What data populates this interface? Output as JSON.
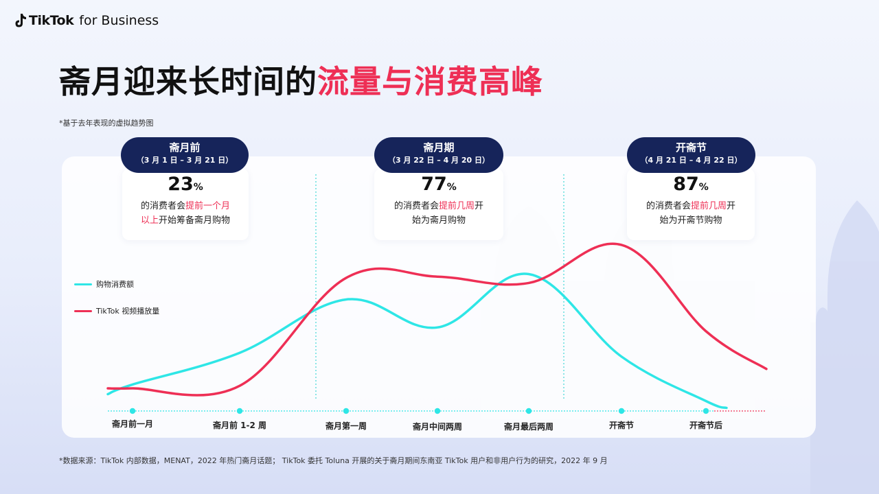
{
  "brand": {
    "name": "TikTok",
    "suffix": "for Business"
  },
  "title": {
    "plain": "斋月迎来长时间的",
    "highlight": "流量与消费高峰"
  },
  "note_top": "*基于去年表现的虚拟趋势图",
  "phases": [
    {
      "name": "斋月前",
      "dates": "（3 月 1 日 – 3 月 21 日）",
      "stat_value": "23",
      "stat_unit": "%",
      "text_a": "的消费者会",
      "text_hl": "提前一个月",
      "text_hl2": "以上",
      "text_b": "开始筹备斋月购物"
    },
    {
      "name": "斋月期",
      "dates": "（3 月 22 日 – 4 月 20 日）",
      "stat_value": "77",
      "stat_unit": "%",
      "text_a": "的消费者会",
      "text_hl": "提前几周",
      "text_b": "开",
      "text_c": "始为斋月购物"
    },
    {
      "name": "开斋节",
      "dates": "（4 月 21 日 – 4 月 22 日）",
      "stat_value": "87",
      "stat_unit": "%",
      "text_a": "的消费者会",
      "text_hl": "提前几周",
      "text_b": "开",
      "text_c": "始为开斋节购物"
    }
  ],
  "legend": [
    {
      "label": "购物消费额",
      "color": "#2ee6e6"
    },
    {
      "label": "TikTok 视频播放量",
      "color": "#ee2f55"
    }
  ],
  "chart_data": {
    "type": "line",
    "categories": [
      "斋月前一月",
      "斋月前 1-2 周",
      "斋月第一周",
      "斋月中间两周",
      "斋月最后两周",
      "开斋节",
      "开斋节后"
    ],
    "series": [
      {
        "name": "购物消费额",
        "values": [
          0.03,
          0.28,
          0.7,
          0.48,
          0.9,
          0.25,
          -0.1
        ],
        "color": "#2ee6e6"
      },
      {
        "name": "TikTok 视频播放量",
        "values": [
          0.0,
          0.02,
          0.87,
          0.88,
          0.83,
          1.13,
          0.45
        ],
        "color": "#ee2f55"
      }
    ],
    "phase_dividers_after_category": [
      1,
      4
    ]
  },
  "footnote": "*数据来源：TikTok 内部数据，MENAT，2022 年热门斋月话题； TikTok 委托 Toluna 开展的关于斋月期间东南亚 TikTok 用户和非用户行为的研究，2022 年 9 月"
}
